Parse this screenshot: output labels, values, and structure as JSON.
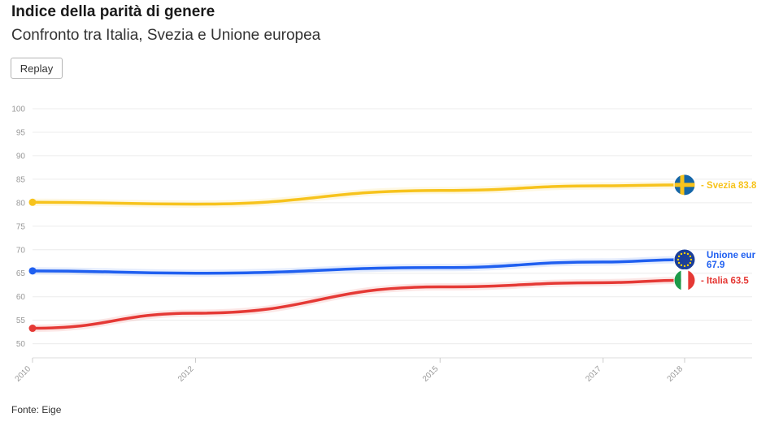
{
  "header": {
    "title": "Indice della parità di genere",
    "subtitle": "Confronto tra Italia, Svezia e Unione europea"
  },
  "controls": {
    "replay_label": "Replay"
  },
  "footer": {
    "source": "Fonte: Eige"
  },
  "chart_data": {
    "type": "line",
    "title": "Indice della parità di genere",
    "subtitle": "Confronto tra Italia, Svezia e Unione europea",
    "x": [
      2010,
      2012,
      2015,
      2017,
      2018
    ],
    "x_tick_labels": [
      "2010",
      "2012",
      "2015",
      "2017",
      "2018"
    ],
    "xlim": [
      2010,
      2018
    ],
    "ylim": [
      47,
      100
    ],
    "y_ticks": [
      50,
      55,
      60,
      65,
      70,
      75,
      80,
      85,
      90,
      95,
      100
    ],
    "grid": true,
    "legend": "end-of-line labels with flag icons",
    "series": [
      {
        "name": "Svezia",
        "label_name": "Svezia",
        "label_value": "83.8",
        "color": "#f7c31c",
        "icon": "sweden-flag-icon",
        "values": [
          80.1,
          79.7,
          82.6,
          83.6,
          83.8
        ]
      },
      {
        "name": "Unione europea",
        "label_name": "Unione eur",
        "label_value": "67.9",
        "color": "#1f5ff0",
        "icon": "eu-flag-icon",
        "values": [
          65.5,
          65.0,
          66.2,
          67.4,
          67.9
        ]
      },
      {
        "name": "Italia",
        "label_name": "Italia",
        "label_value": "63.5",
        "color": "#e53935",
        "icon": "italy-flag-icon",
        "values": [
          53.3,
          56.5,
          62.1,
          63.0,
          63.5
        ]
      }
    ]
  }
}
